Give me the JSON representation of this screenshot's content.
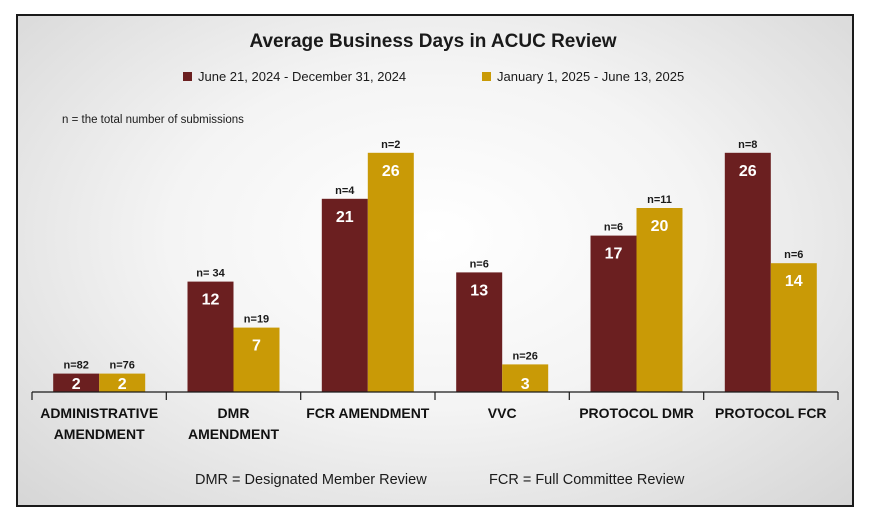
{
  "chart_data": {
    "type": "bar",
    "title": "Average Business Days in ACUC Review",
    "note": "n = the total number of submissions",
    "categories": [
      [
        "ADMINISTRATIVE",
        "AMENDMENT"
      ],
      [
        "DMR",
        "AMENDMENT"
      ],
      [
        "FCR AMENDMENT"
      ],
      [
        "VVC"
      ],
      [
        "PROTOCOL DMR"
      ],
      [
        "PROTOCOL FCR"
      ]
    ],
    "series": [
      {
        "name": "June 21, 2024 - December 31, 2024",
        "color": "#6b1f20",
        "values": [
          2,
          12,
          21,
          13,
          17,
          26
        ],
        "n_labels": [
          "n=82",
          "n= 34",
          "n=4",
          "n=6",
          "n=6",
          "n=8"
        ]
      },
      {
        "name": "January 1, 2025 -  June 13, 2025",
        "color": "#c99a06",
        "values": [
          2,
          7,
          26,
          3,
          20,
          14
        ],
        "n_labels": [
          "n=76",
          "n=19",
          "n=2",
          "n=26",
          "n=11",
          "n=6"
        ]
      }
    ],
    "ylim": [
      0,
      30
    ],
    "grid": false,
    "legend_position": "top-center",
    "footnotes": [
      "DMR = Designated Member Review",
      "FCR = Full Committee Review"
    ]
  }
}
